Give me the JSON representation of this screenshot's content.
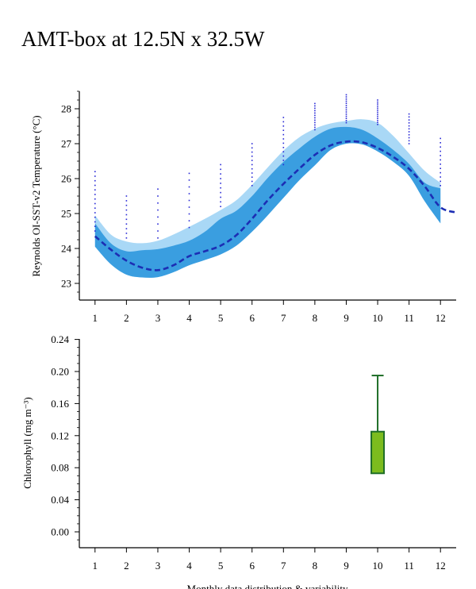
{
  "page": {
    "title": "AMT-box at 12.5N x 32.5W"
  },
  "chart_data": [
    {
      "type": "line",
      "ylabel": "Reynolds OI-SST-v2 Temperature (°C)",
      "xlabel": "",
      "x_ticks": [
        "1",
        "2",
        "3",
        "4",
        "5",
        "6",
        "7",
        "8",
        "9",
        "10",
        "11",
        "12"
      ],
      "y_ticks": [
        "23",
        "24",
        "25",
        "26",
        "27",
        "28"
      ],
      "ylim": [
        22.5,
        28.6
      ],
      "xlim": [
        0.5,
        12.5
      ],
      "grid": false,
      "colors": {
        "outer_band": "#a9d8f6",
        "inner_band": "#3a9ee0",
        "mean_line": "#1c2eb4",
        "points": "#2a2ad6"
      },
      "series": [
        {
          "role": "mean",
          "x": [
            1,
            1.5,
            2,
            2.5,
            3,
            3.5,
            4,
            4.5,
            5,
            5.5,
            6,
            6.5,
            7,
            7.5,
            8,
            8.5,
            9,
            9.5,
            10,
            10.5,
            11,
            11.5,
            12,
            12.5
          ],
          "y": [
            24.35,
            23.97,
            23.65,
            23.45,
            23.38,
            23.52,
            23.78,
            23.92,
            24.08,
            24.38,
            24.85,
            25.38,
            25.85,
            26.28,
            26.68,
            26.95,
            27.06,
            27.04,
            26.88,
            26.62,
            26.28,
            25.78,
            25.18,
            25.03
          ]
        },
        {
          "role": "band_outer",
          "x": [
            1,
            1.5,
            2,
            2.5,
            3,
            3.5,
            4,
            4.5,
            5,
            5.5,
            6,
            6.5,
            7,
            7.5,
            8,
            8.5,
            9,
            9.5,
            10,
            10.5,
            11,
            11.5,
            12
          ],
          "upper": [
            24.95,
            24.4,
            24.2,
            24.15,
            24.22,
            24.4,
            24.62,
            24.85,
            25.1,
            25.38,
            25.82,
            26.32,
            26.8,
            27.18,
            27.43,
            27.58,
            27.65,
            27.7,
            27.6,
            27.22,
            26.72,
            26.22,
            25.88
          ],
          "lower": [
            24.05,
            23.55,
            23.25,
            23.17,
            23.18,
            23.32,
            23.52,
            23.67,
            23.83,
            24.08,
            24.48,
            24.95,
            25.45,
            25.95,
            26.38,
            26.82,
            27.0,
            26.98,
            26.78,
            26.48,
            26.08,
            25.35,
            24.72
          ]
        },
        {
          "role": "band_inner",
          "x": [
            1,
            1.5,
            2,
            2.5,
            3,
            3.5,
            4,
            4.5,
            5,
            5.5,
            6,
            6.5,
            7,
            7.5,
            8,
            8.5,
            9,
            9.5,
            10,
            10.5,
            11,
            11.5,
            12
          ],
          "upper": [
            24.72,
            24.15,
            23.92,
            23.95,
            23.98,
            24.08,
            24.22,
            24.48,
            24.85,
            25.08,
            25.5,
            26.02,
            26.48,
            26.86,
            27.2,
            27.43,
            27.48,
            27.4,
            27.15,
            26.82,
            26.42,
            25.88,
            25.72
          ],
          "lower": [
            24.05,
            23.55,
            23.25,
            23.17,
            23.18,
            23.32,
            23.52,
            23.67,
            23.83,
            24.08,
            24.48,
            24.95,
            25.45,
            25.95,
            26.38,
            26.82,
            27.0,
            26.98,
            26.78,
            26.48,
            26.08,
            25.35,
            24.72
          ]
        }
      ],
      "point_columns": [
        {
          "x": 1,
          "ymin": 24.5,
          "ymax": 26.2,
          "count": 14
        },
        {
          "x": 2,
          "ymin": 24.3,
          "ymax": 25.5,
          "count": 10
        },
        {
          "x": 3,
          "ymin": 24.3,
          "ymax": 25.7,
          "count": 8
        },
        {
          "x": 4,
          "ymin": 24.6,
          "ymax": 26.15,
          "count": 9
        },
        {
          "x": 5,
          "ymin": 25.2,
          "ymax": 26.4,
          "count": 10
        },
        {
          "x": 6,
          "ymin": 25.8,
          "ymax": 27.0,
          "count": 11
        },
        {
          "x": 7,
          "ymin": 26.4,
          "ymax": 27.75,
          "count": 12
        },
        {
          "x": 8,
          "ymin": 27.4,
          "ymax": 28.15,
          "count": 12
        },
        {
          "x": 9,
          "ymin": 27.6,
          "ymax": 28.4,
          "count": 14
        },
        {
          "x": 10,
          "ymin": 27.55,
          "ymax": 28.25,
          "count": 13
        },
        {
          "x": 11,
          "ymin": 27.0,
          "ymax": 27.85,
          "count": 11
        },
        {
          "x": 12,
          "ymin": 25.8,
          "ymax": 27.15,
          "count": 12
        }
      ]
    },
    {
      "type": "box",
      "ylabel": "Chlorophyll (mg m⁻³)",
      "xlabel": "Monthly data distribution & variability",
      "x_ticks": [
        "1",
        "2",
        "3",
        "4",
        "5",
        "6",
        "7",
        "8",
        "9",
        "10",
        "11",
        "12"
      ],
      "y_ticks": [
        "0.00",
        "0.04",
        "0.08",
        "0.12",
        "0.16",
        "0.20",
        "0.24"
      ],
      "ylim": [
        -0.019,
        0.24
      ],
      "xlim": [
        0.5,
        12.5
      ],
      "grid": false,
      "colors": {
        "box_fill": "#7cbc1e",
        "box_stroke": "#1f6e28"
      },
      "boxes": [
        {
          "x": 10,
          "whisker_low": 0.073,
          "q1": 0.073,
          "q3": 0.125,
          "whisker_high": 0.195
        }
      ]
    }
  ]
}
